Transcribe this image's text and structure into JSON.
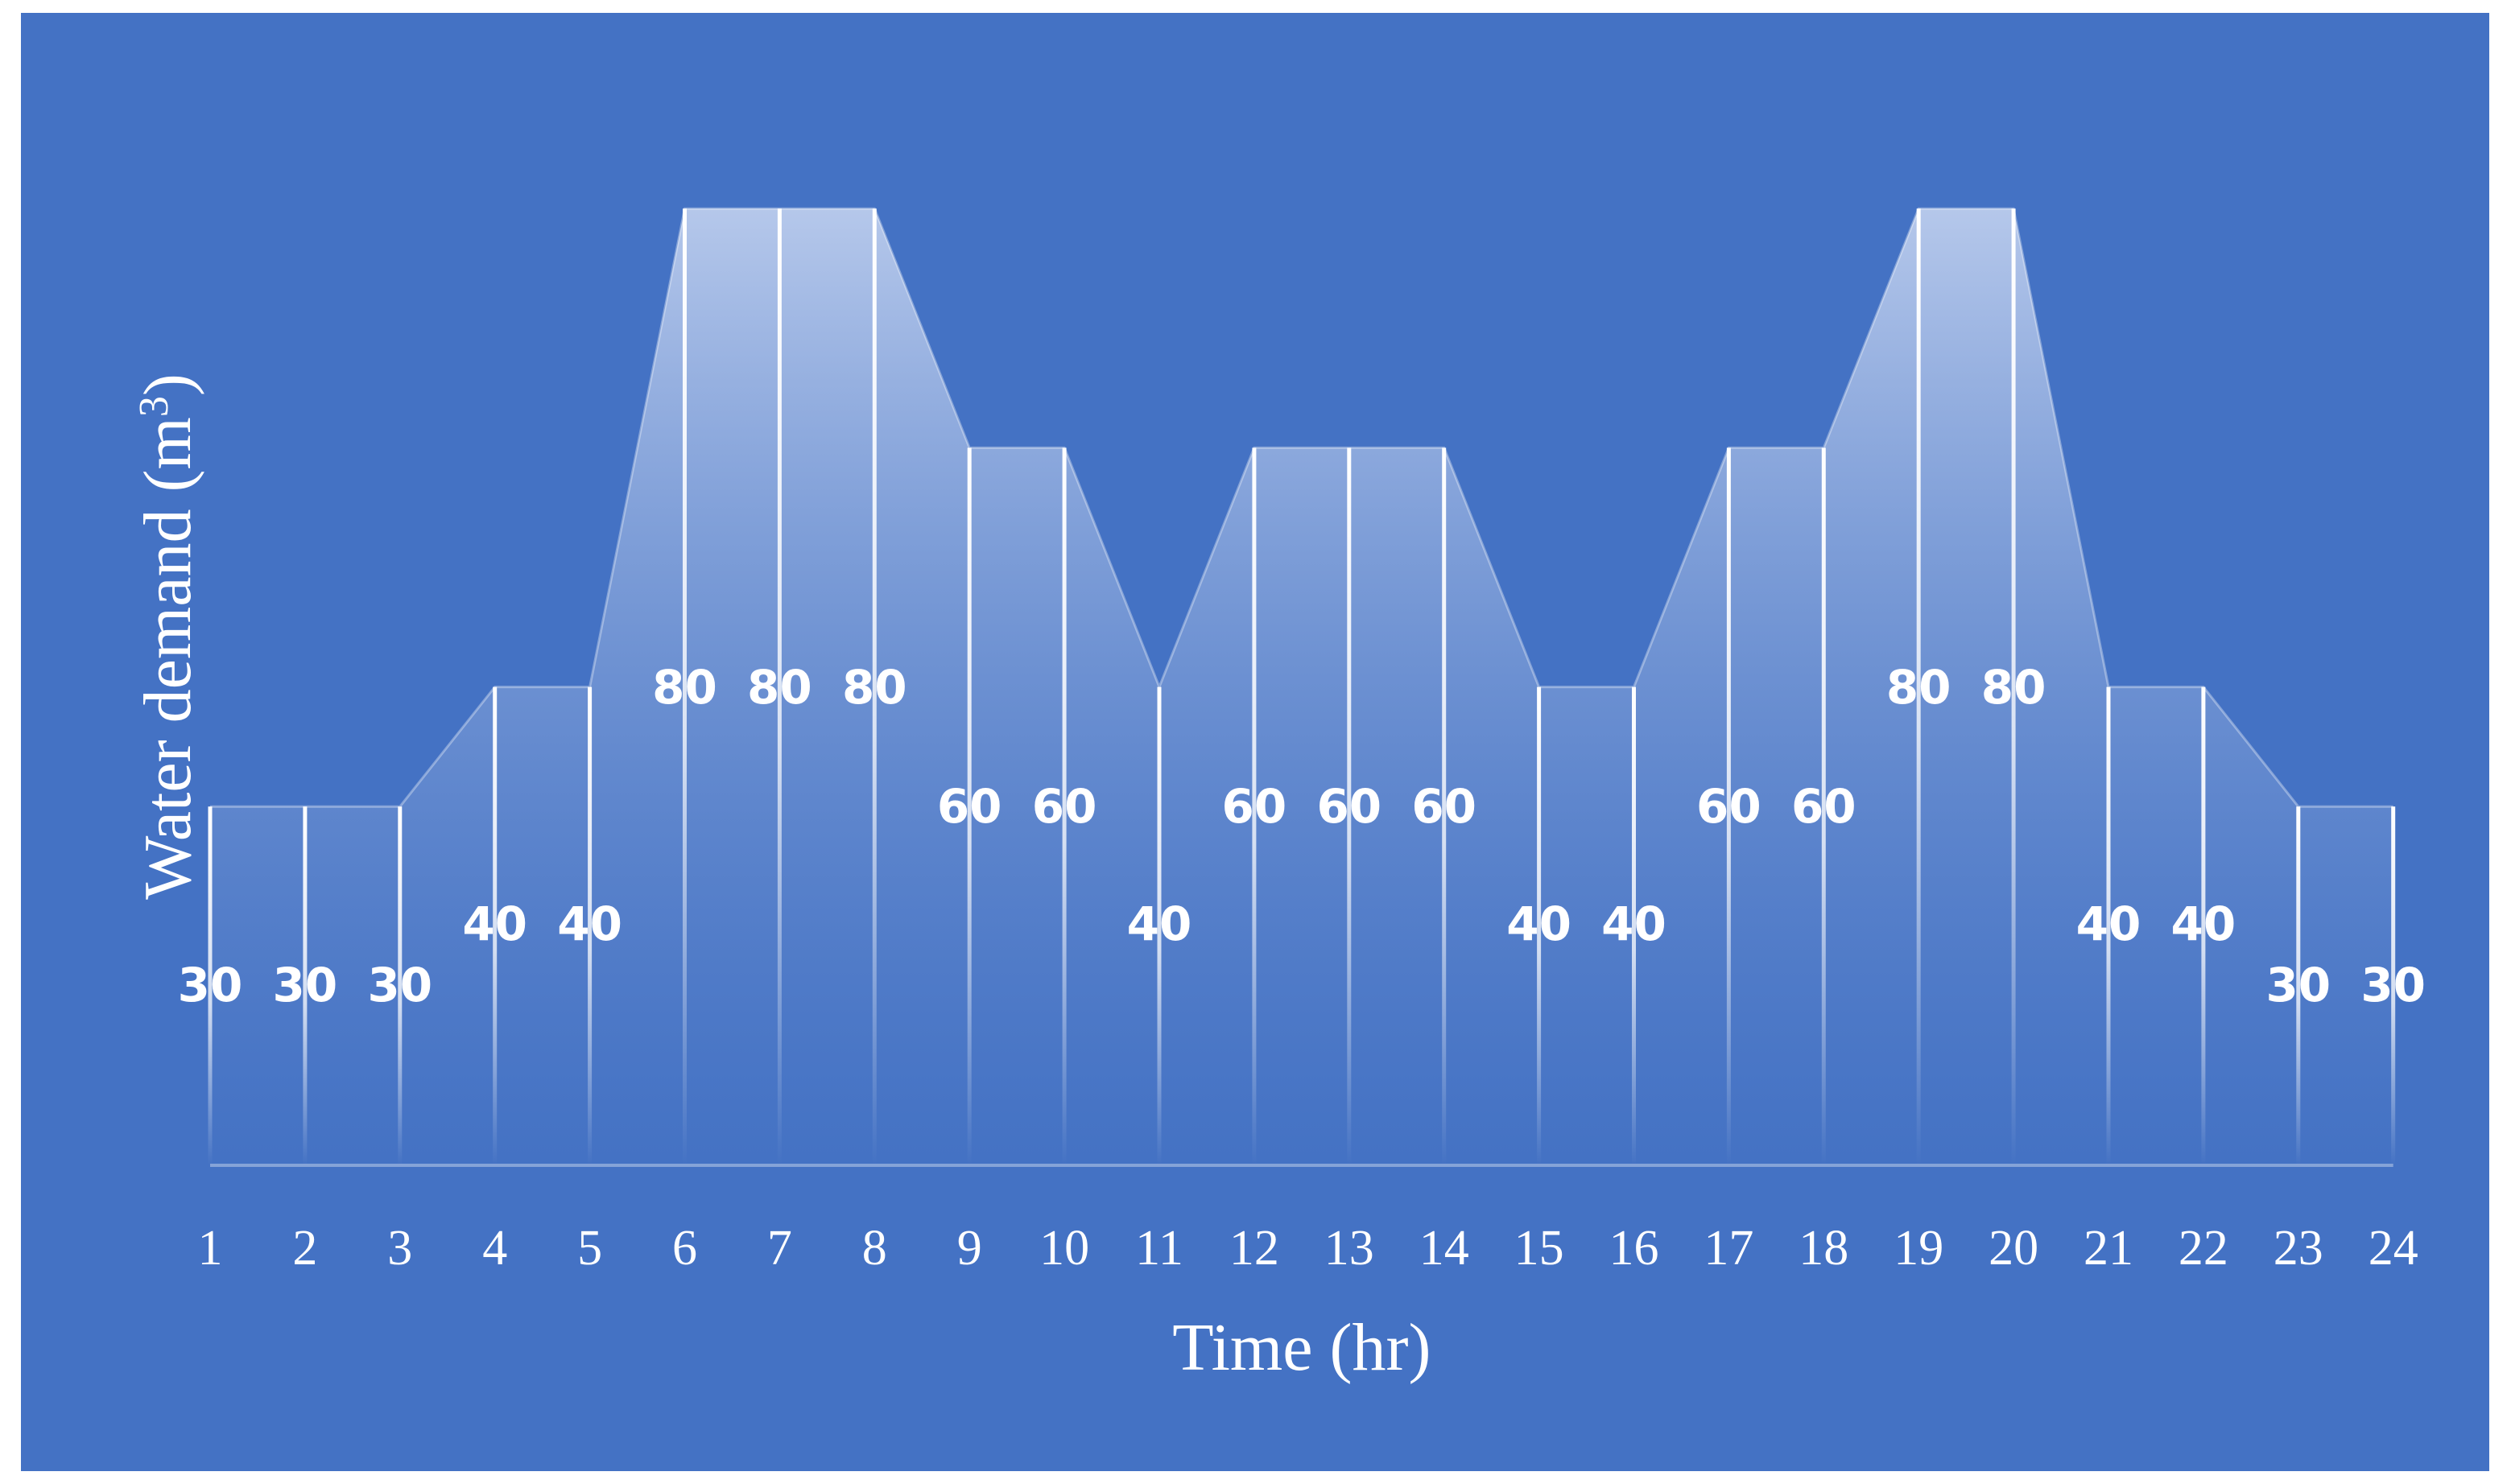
{
  "chart_data": {
    "type": "area",
    "x": [
      "1",
      "2",
      "3",
      "4",
      "5",
      "6",
      "7",
      "8",
      "9",
      "10",
      "11",
      "12",
      "13",
      "14",
      "15",
      "16",
      "17",
      "18",
      "19",
      "20",
      "21",
      "22",
      "23",
      "24"
    ],
    "values": [
      30,
      30,
      30,
      40,
      40,
      80,
      80,
      80,
      60,
      60,
      40,
      60,
      60,
      60,
      40,
      40,
      60,
      60,
      80,
      80,
      40,
      40,
      30,
      30
    ],
    "data_labels": [
      "30",
      "30",
      "30",
      "40",
      "40",
      "80",
      "80",
      "80",
      "60",
      "60",
      "40",
      "60",
      "60",
      "60",
      "40",
      "40",
      "60",
      "60",
      "80",
      "80",
      "40",
      "40",
      "30",
      "30"
    ],
    "xlabel": "Time (hr)",
    "ylabel_text": "Water demand (m",
    "ylabel_sup": "3",
    "ylabel_close": ")",
    "ylim": [
      0,
      80
    ],
    "grid": false,
    "legend": "none",
    "colors": {
      "background": "#4472C4",
      "fill_top": "#BFCFEE",
      "fill_bottom": "#4472C4",
      "line": "#FFFFFF",
      "text": "#FFFFFF"
    }
  }
}
